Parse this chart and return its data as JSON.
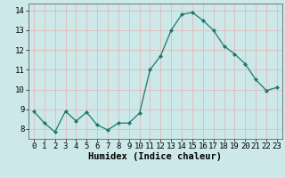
{
  "x": [
    0,
    1,
    2,
    3,
    4,
    5,
    6,
    7,
    8,
    9,
    10,
    11,
    12,
    13,
    14,
    15,
    16,
    17,
    18,
    19,
    20,
    21,
    22,
    23
  ],
  "y": [
    8.9,
    8.3,
    7.85,
    8.9,
    8.4,
    8.85,
    8.2,
    7.95,
    8.3,
    8.3,
    8.8,
    11.0,
    11.7,
    13.0,
    13.8,
    13.9,
    13.5,
    13.0,
    12.2,
    11.8,
    11.3,
    10.5,
    9.95,
    10.1
  ],
  "line_color": "#1a7a6a",
  "marker": "D",
  "marker_size": 2.0,
  "bg_color": "#cce8e8",
  "grid_color": "#e8b0b0",
  "xlabel": "Humidex (Indice chaleur)",
  "xlim": [
    -0.5,
    23.5
  ],
  "ylim": [
    7.5,
    14.35
  ],
  "yticks": [
    8,
    9,
    10,
    11,
    12,
    13,
    14
  ],
  "xtick_labels": [
    "0",
    "1",
    "2",
    "3",
    "4",
    "5",
    "6",
    "7",
    "8",
    "9",
    "10",
    "11",
    "12",
    "13",
    "14",
    "15",
    "16",
    "17",
    "18",
    "19",
    "20",
    "21",
    "22",
    "23"
  ],
  "xlabel_fontsize": 7.5,
  "tick_fontsize": 6.5
}
